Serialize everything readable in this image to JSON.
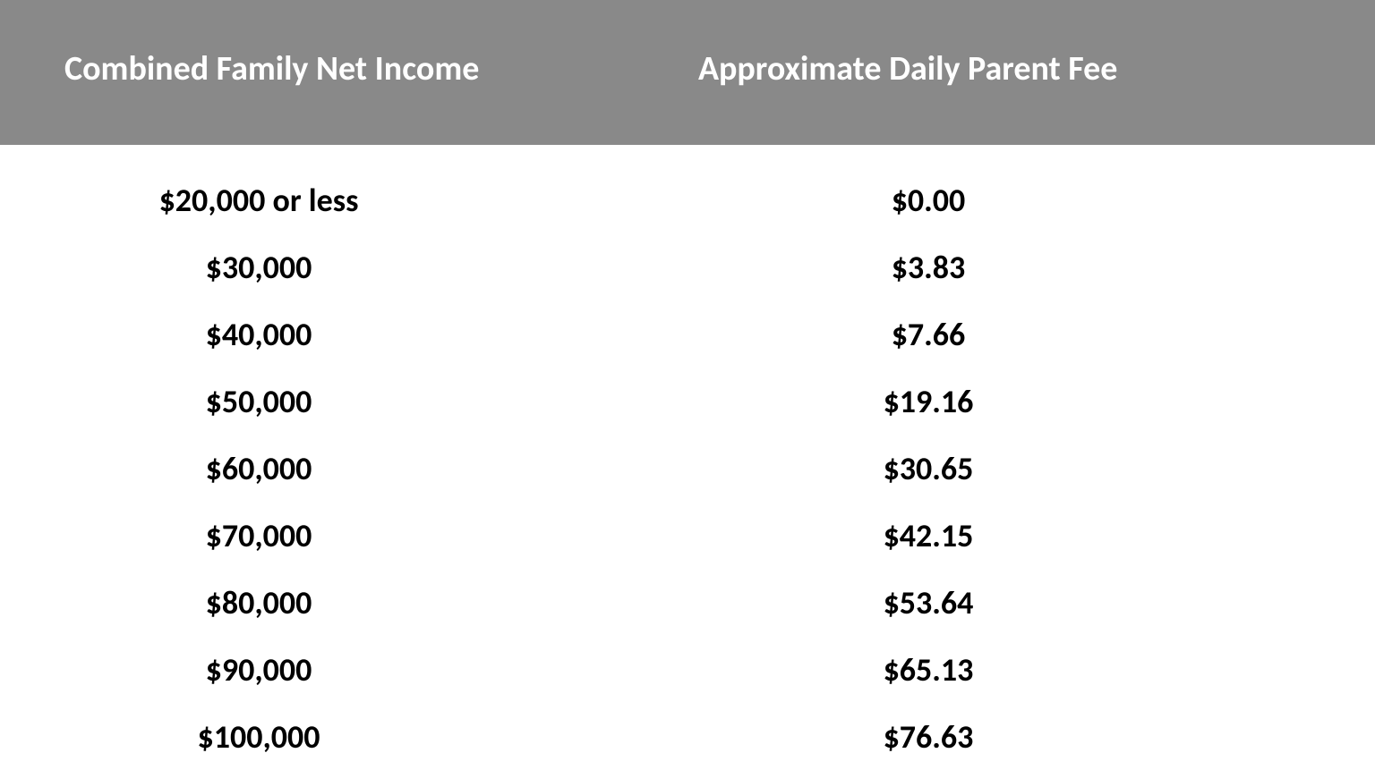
{
  "table": {
    "type": "table",
    "header_background": "#898989",
    "header_text_color": "#ffffff",
    "header_fontsize": 38,
    "header_fontweight": 700,
    "body_text_color": "#000000",
    "body_fontsize": 36,
    "body_fontweight": 700,
    "background_color": "#ffffff",
    "columns": [
      "Combined Family Net Income",
      "Approximate Daily Parent Fee"
    ],
    "rows": [
      [
        "$20,000 or less",
        "$0.00"
      ],
      [
        "$30,000",
        "$3.83"
      ],
      [
        "$40,000",
        "$7.66"
      ],
      [
        "$50,000",
        "$19.16"
      ],
      [
        "$60,000",
        "$30.65"
      ],
      [
        "$70,000",
        "$42.15"
      ],
      [
        "$80,000",
        "$53.64"
      ],
      [
        "$90,000",
        "$65.13"
      ],
      [
        "$100,000",
        "$76.63"
      ]
    ]
  }
}
